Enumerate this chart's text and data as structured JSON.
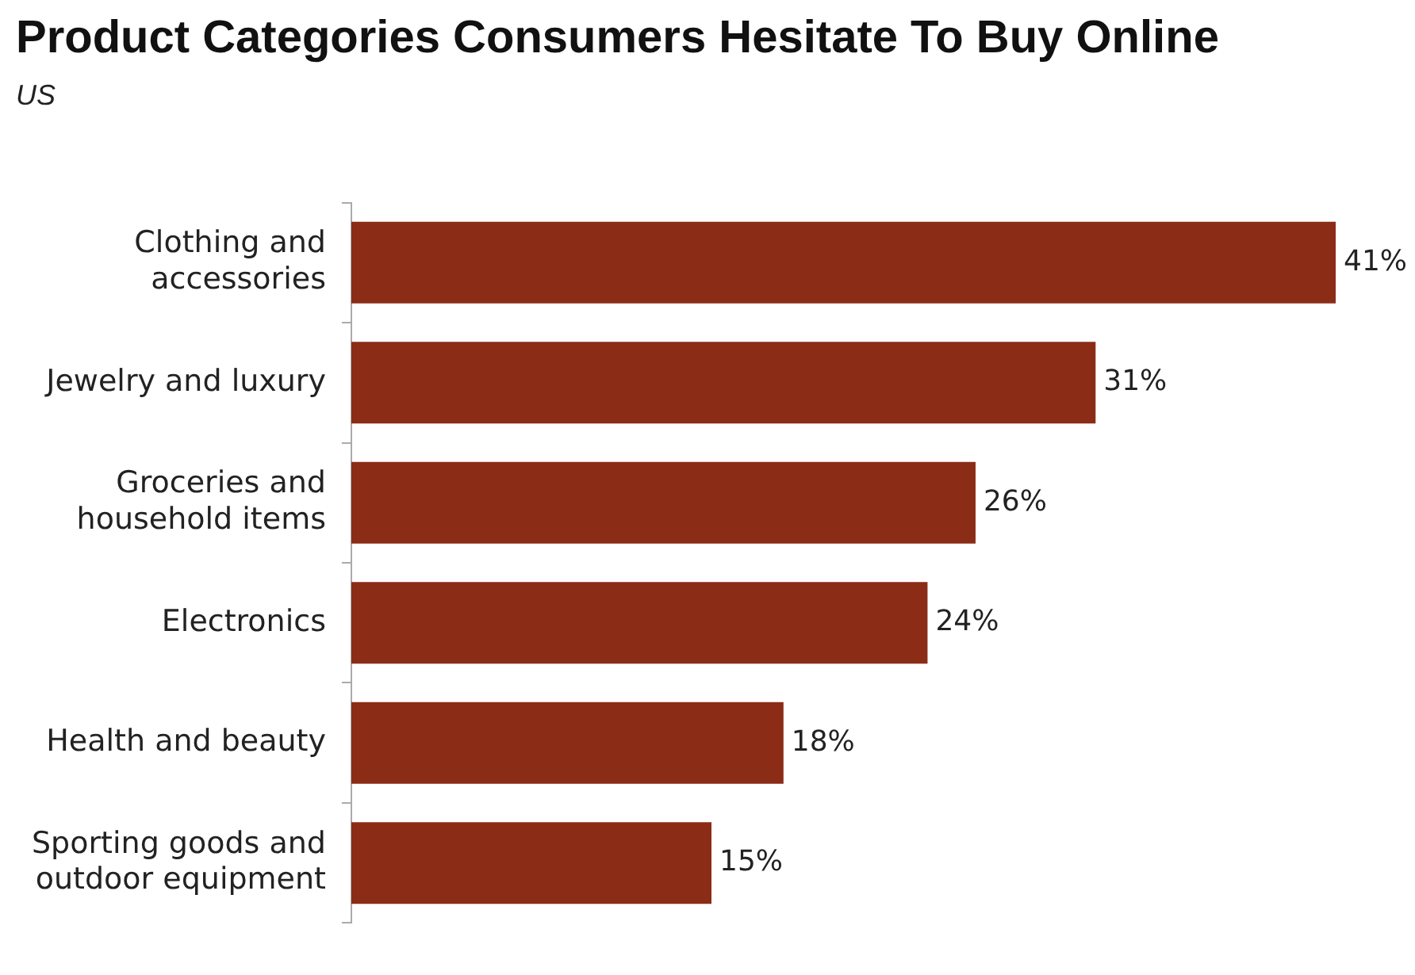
{
  "chart_data": {
    "type": "bar",
    "orientation": "horizontal",
    "tick_labels": "y",
    "title": "Product Categories Consumers Hesitate To Buy Online",
    "subtitle": "US",
    "categories": [
      "Clothing and accessories",
      "Jewelry and luxury",
      "Groceries and household items",
      "Electronics",
      "Health and beauty",
      "Sporting goods and outdoor equipment"
    ],
    "values": [
      41,
      31,
      26,
      24,
      18,
      15
    ],
    "value_labels": [
      "41%",
      "31%",
      "26%",
      "24%",
      "18%",
      "15%"
    ],
    "color": "#8b2c17"
  }
}
